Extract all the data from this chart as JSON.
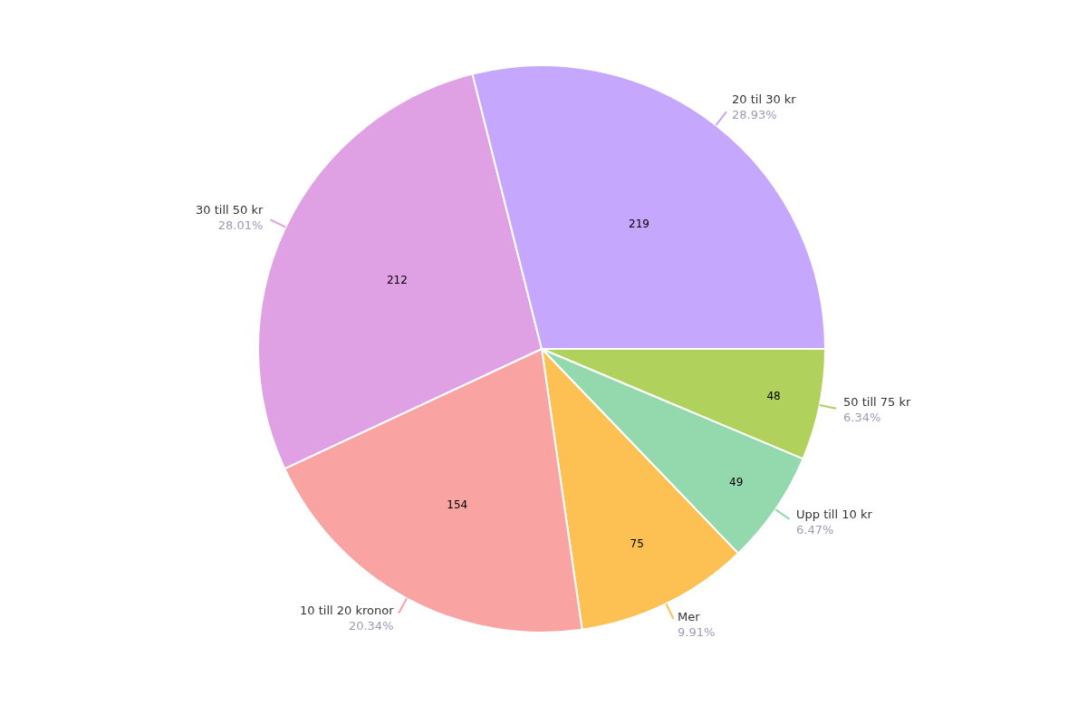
{
  "chart_data": {
    "type": "pie",
    "categories": [
      "50 till 75 kr",
      "Upp till 10 kr",
      "Mer",
      "10 till 20 kronor",
      "30 till 50 kr",
      "20 til 30 kr"
    ],
    "values": [
      48,
      49,
      75,
      154,
      212,
      219
    ],
    "colors": [
      "#b0d25c",
      "#94d9ad",
      "#fdc052",
      "#f9a3a3",
      "#e0a0e4",
      "#c5a8fe"
    ],
    "annotations": [
      "6.34%",
      "6.47%",
      "9.91%",
      "20.34%",
      "28.01%",
      "28.93%"
    ],
    "data_labels": true,
    "legend": false
  }
}
